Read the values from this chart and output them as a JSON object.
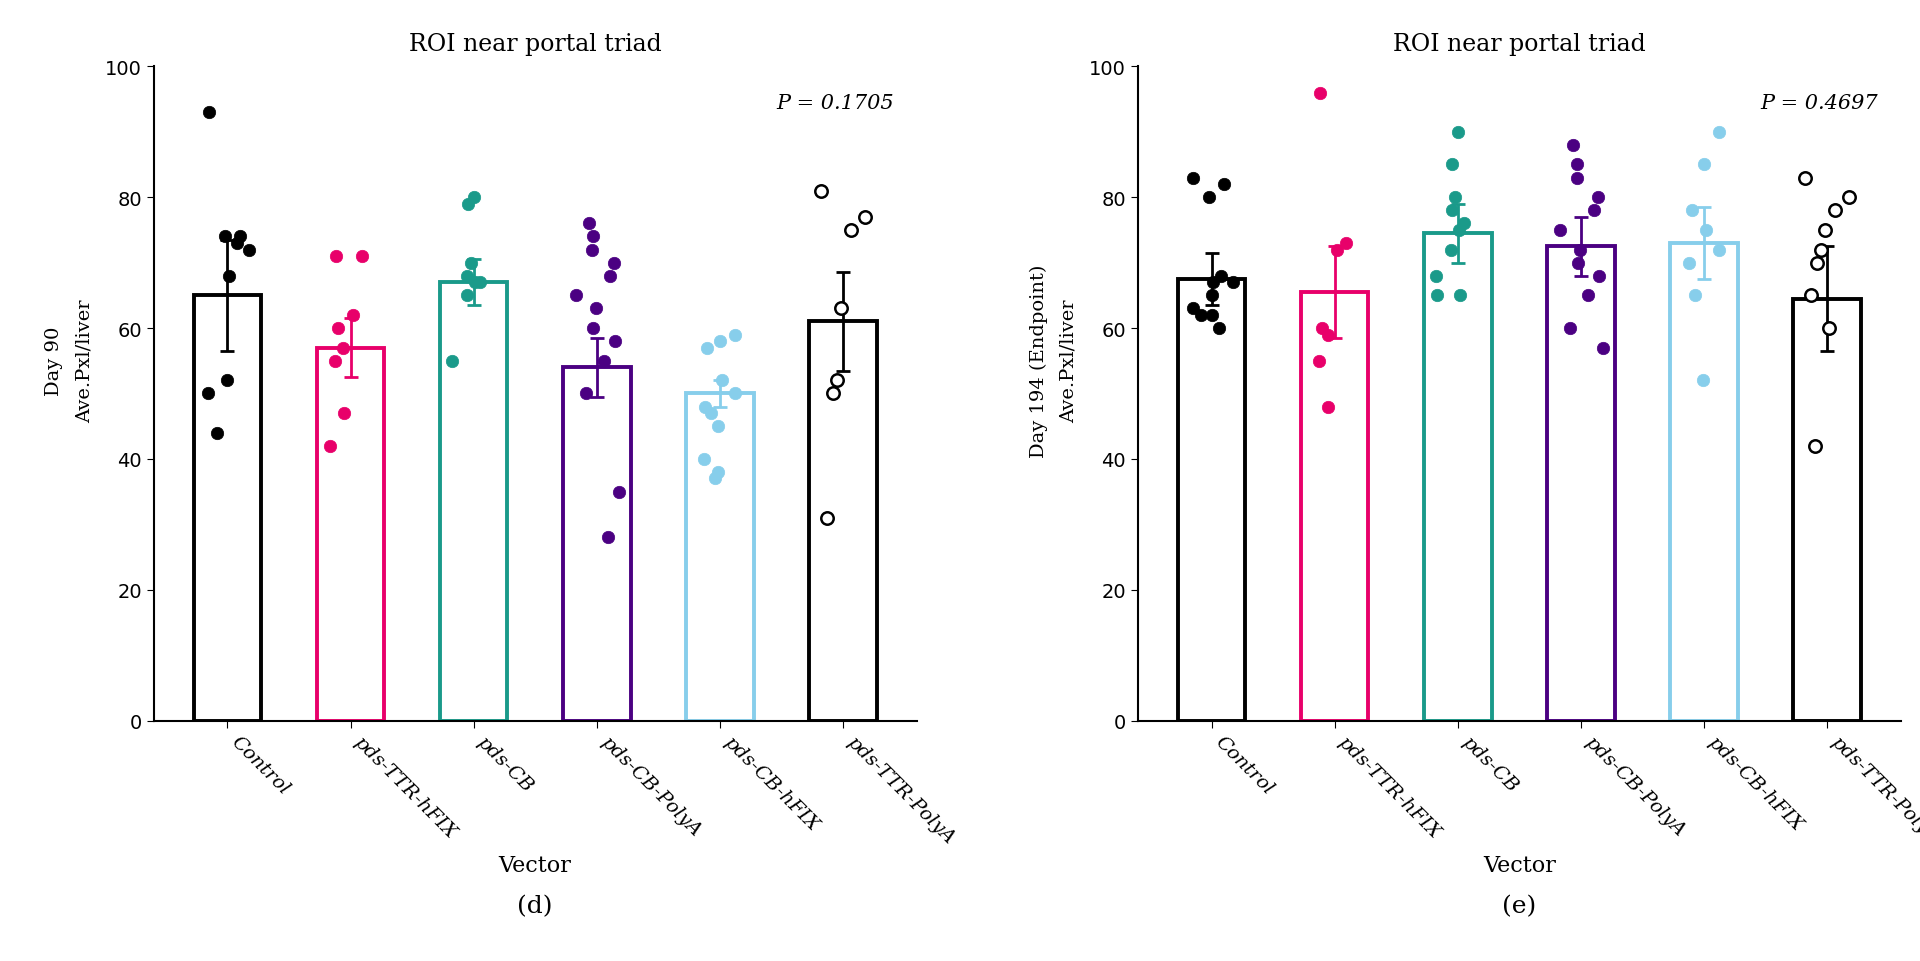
{
  "title": "ROI near portal triad",
  "xlabel": "Vector",
  "panel_d_ylabel1": "Day 90",
  "panel_d_ylabel2": "Ave.Pxl/liver",
  "panel_e_ylabel1": "Day 194 (Endpoint)",
  "panel_e_ylabel2": "Ave.Pxl/liver",
  "panel_d_label": "(d)",
  "panel_e_label": "(e)",
  "p_value_d": "P = 0.1705",
  "p_value_e": "P = 0.4697",
  "categories": [
    "Control",
    "pds-TTR-hFIX",
    "pds-CB",
    "pds-CB-PolyA",
    "pds-CB-hFIX",
    "pds-TTR-PolyA"
  ],
  "bar_edge_colors": [
    "#000000",
    "#e8006a",
    "#1a9a8a",
    "#4b0082",
    "#87ceeb",
    "#000000"
  ],
  "bar_fill_colors": [
    "white",
    "white",
    "white",
    "white",
    "white",
    "white"
  ],
  "dot_colors": [
    "#000000",
    "#e8006a",
    "#1a9a8a",
    "#4b0082",
    "#87ceeb",
    "#000000"
  ],
  "ylim": [
    0,
    100
  ],
  "yticks": [
    0,
    20,
    40,
    60,
    80,
    100
  ],
  "panel_d_means": [
    65.0,
    57.0,
    67.0,
    54.0,
    50.0,
    61.0
  ],
  "panel_d_errors": [
    8.5,
    4.5,
    3.5,
    4.5,
    2.0,
    7.5
  ],
  "panel_d_dots": [
    [
      93,
      74,
      74,
      73,
      72,
      68,
      52,
      50,
      44
    ],
    [
      71,
      71,
      62,
      60,
      57,
      55,
      47,
      42
    ],
    [
      80,
      79,
      70,
      68,
      67,
      67,
      65,
      55
    ],
    [
      76,
      74,
      72,
      70,
      68,
      65,
      63,
      60,
      58,
      55,
      50,
      35,
      28
    ],
    [
      59,
      58,
      57,
      52,
      50,
      48,
      47,
      45,
      40,
      38,
      37
    ],
    [
      81,
      77,
      75,
      63,
      52,
      50,
      31
    ]
  ],
  "panel_d_dot_filled": [
    true,
    true,
    true,
    true,
    true,
    false
  ],
  "panel_e_means": [
    67.5,
    65.5,
    74.5,
    72.5,
    73.0,
    64.5
  ],
  "panel_e_errors": [
    4.0,
    7.0,
    4.5,
    4.5,
    5.5,
    8.0
  ],
  "panel_e_dots": [
    [
      83,
      82,
      80,
      68,
      67,
      67,
      65,
      63,
      62,
      62,
      60
    ],
    [
      96,
      73,
      72,
      60,
      59,
      55,
      48
    ],
    [
      90,
      85,
      80,
      78,
      76,
      75,
      72,
      68,
      65,
      65
    ],
    [
      88,
      85,
      83,
      80,
      78,
      75,
      72,
      70,
      68,
      65,
      60,
      57
    ],
    [
      90,
      85,
      78,
      75,
      72,
      70,
      65,
      52
    ],
    [
      83,
      80,
      78,
      75,
      72,
      70,
      65,
      60,
      42
    ]
  ],
  "panel_e_dot_filled": [
    true,
    true,
    true,
    true,
    true,
    false
  ]
}
